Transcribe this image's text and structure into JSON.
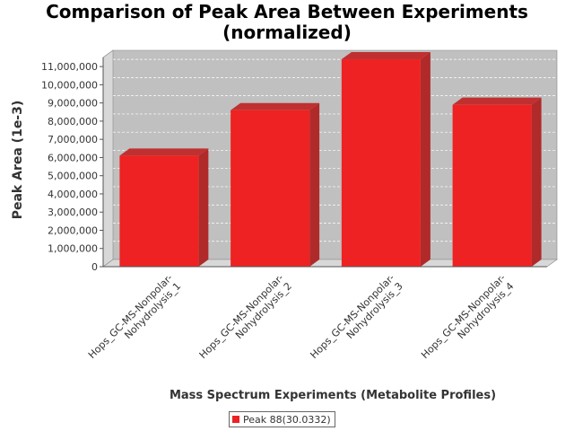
{
  "chart_data": {
    "type": "bar",
    "title_lines": [
      "Comparison of Peak Area Between Experiments",
      "(normalized)"
    ],
    "xlabel": "Mass Spectrum Experiments (Metabolite Profiles)",
    "ylabel": "Peak Area (1e-3)",
    "categories": [
      [
        "Hops_GC-MS-Nonpolar-",
        "Nohydrolysis_1"
      ],
      [
        "Hops_GC-MS-Nonpolar-",
        "Nohydrolysis_2"
      ],
      [
        "Hops_GC-MS-Nonpolar-",
        "Nohydrolysis_3"
      ],
      [
        "Hops_GC-MS-Nonpolar-",
        "Nohydrolysis_4"
      ]
    ],
    "series": [
      {
        "name": "Peak 88(30.0332)",
        "values": [
          6100000,
          8600000,
          11400000,
          8900000
        ],
        "color": "#ee2222"
      }
    ],
    "ylim": [
      0,
      11500000
    ],
    "yticks": [
      0,
      1000000,
      2000000,
      3000000,
      4000000,
      5000000,
      6000000,
      7000000,
      8000000,
      9000000,
      10000000,
      11000000
    ],
    "ytick_labels": [
      "0",
      "1,000,000",
      "2,000,000",
      "3,000,000",
      "4,000,000",
      "5,000,000",
      "6,000,000",
      "7,000,000",
      "8,000,000",
      "9,000,000",
      "10,000,000",
      "11,000,000"
    ],
    "grid": true,
    "legend_position": "bottom",
    "style": "3d-bar",
    "colors": {
      "plot_background": "#c0c0c0",
      "plot_side": "#d8d8d8",
      "bar_side": "#b02a2a",
      "bar_top": "#c03030"
    }
  }
}
